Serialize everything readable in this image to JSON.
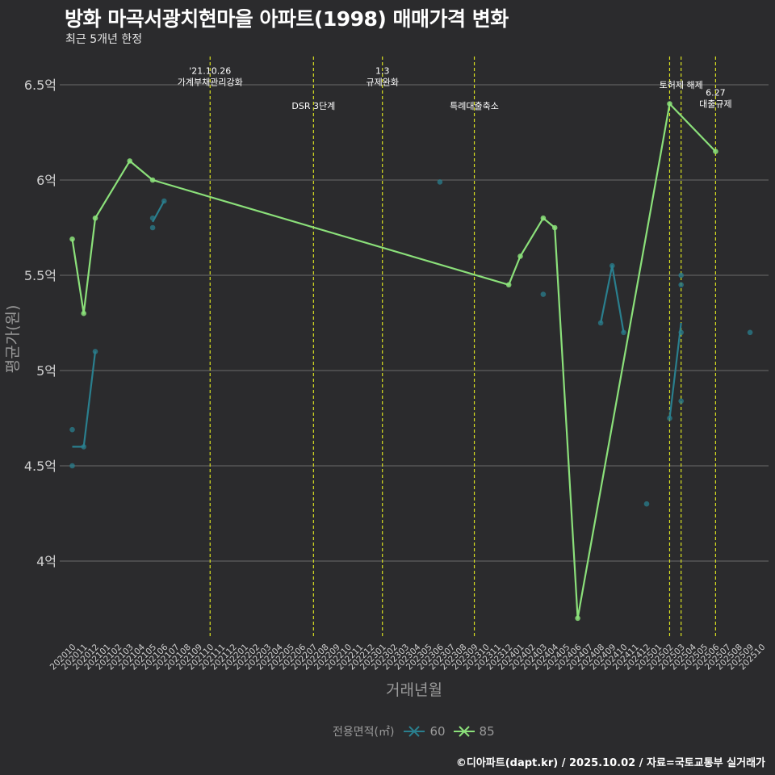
{
  "title": "방화 마곡서광치현마을 아파트(1998) 매매가격 변화",
  "subtitle": "최근 5개년 한정",
  "caption": "©디아파트(dapt.kr) / 2025.10.02 / 자료=국토교통부 실거래가",
  "colors": {
    "background": "#2b2b2d",
    "grid": "#6b6b6b",
    "series_60": "#2a7f8e",
    "series_85": "#8be07a",
    "event_line": "#d9e021",
    "axis_text": "#d0d0d0",
    "axis_title": "#9a9a9a"
  },
  "chart_data": {
    "type": "line",
    "title": "방화 마곡서광치현마을 아파트(1998) 매매가격 변화",
    "xlabel": "거래년월",
    "ylabel": "평균가(원)",
    "ylim": [
      3.6,
      6.65
    ],
    "y_ticks": [
      {
        "value": 4.0,
        "label": "4억"
      },
      {
        "value": 4.5,
        "label": "4.5억"
      },
      {
        "value": 5.0,
        "label": "5억"
      },
      {
        "value": 5.5,
        "label": "5.5억"
      },
      {
        "value": 6.0,
        "label": "6억"
      },
      {
        "value": 6.5,
        "label": "6.5억"
      }
    ],
    "x_ticks": [
      "202010",
      "202011",
      "202012",
      "202101",
      "202102",
      "202103",
      "202104",
      "202105",
      "202106",
      "202107",
      "202108",
      "202109",
      "202110",
      "202111",
      "202112",
      "202201",
      "202202",
      "202203",
      "202204",
      "202205",
      "202206",
      "202207",
      "202208",
      "202209",
      "202210",
      "202211",
      "202212",
      "202301",
      "202302",
      "202303",
      "202304",
      "202305",
      "202306",
      "202307",
      "202308",
      "202309",
      "202310",
      "202311",
      "202312",
      "202401",
      "202402",
      "202403",
      "202404",
      "202405",
      "202406",
      "202407",
      "202408",
      "202409",
      "202410",
      "202411",
      "202412",
      "202501",
      "202502",
      "202503",
      "202504",
      "202505",
      "202506",
      "202507",
      "202508",
      "202509",
      "202510"
    ],
    "legend_title": "전용면적(㎡)",
    "series": [
      {
        "name": "60",
        "line_segments": [
          [
            [
              "202010",
              4.6
            ],
            [
              "202011",
              4.6
            ],
            [
              "202012",
              5.1
            ]
          ],
          [
            [
              "202105",
              5.78
            ],
            [
              "202106",
              5.89
            ]
          ],
          [
            [
              "202408",
              5.25
            ],
            [
              "202409",
              5.55
            ],
            [
              "202410",
              5.2
            ]
          ],
          [
            [
              "202502",
              4.75
            ],
            [
              "202503",
              5.25
            ]
          ]
        ],
        "points": [
          [
            "202010",
            4.69
          ],
          [
            "202010",
            4.5
          ],
          [
            "202011",
            4.6
          ],
          [
            "202012",
            5.1
          ],
          [
            "202105",
            5.8
          ],
          [
            "202105",
            5.75
          ],
          [
            "202106",
            5.89
          ],
          [
            "202306",
            5.99
          ],
          [
            "202403",
            5.4
          ],
          [
            "202408",
            5.25
          ],
          [
            "202409",
            5.55
          ],
          [
            "202410",
            5.2
          ],
          [
            "202412",
            4.3
          ],
          [
            "202502",
            4.75
          ],
          [
            "202503",
            5.5
          ],
          [
            "202503",
            5.45
          ],
          [
            "202503",
            5.2
          ],
          [
            "202503",
            4.84
          ],
          [
            "202509",
            5.2
          ]
        ]
      },
      {
        "name": "85",
        "line_segments": [
          [
            [
              "202010",
              5.69
            ],
            [
              "202011",
              5.3
            ],
            [
              "202012",
              5.8
            ],
            [
              "202103",
              6.1
            ],
            [
              "202105",
              6.0
            ],
            [
              "202312",
              5.45
            ],
            [
              "202401",
              5.6
            ],
            [
              "202403",
              5.8
            ],
            [
              "202404",
              5.75
            ],
            [
              "202406",
              3.7
            ],
            [
              "202502",
              6.4
            ],
            [
              "202506",
              6.15
            ]
          ]
        ],
        "points": [
          [
            "202010",
            5.69
          ],
          [
            "202011",
            5.3
          ],
          [
            "202012",
            5.8
          ],
          [
            "202103",
            6.1
          ],
          [
            "202105",
            6.0
          ],
          [
            "202312",
            5.45
          ],
          [
            "202401",
            5.6
          ],
          [
            "202403",
            5.8
          ],
          [
            "202404",
            5.75
          ],
          [
            "202406",
            3.7
          ],
          [
            "202502",
            6.4
          ],
          [
            "202506",
            6.15
          ]
        ]
      }
    ],
    "events": [
      {
        "x": "202110",
        "lines": [
          "'21.10.26",
          "가계부채관리강화"
        ],
        "label_y": 6.515
      },
      {
        "x": "202207",
        "lines": [
          "DSR 3단계"
        ],
        "label_y": 6.39
      },
      {
        "x": "202301",
        "lines": [
          "1.3",
          "규제완화"
        ],
        "label_y": 6.515
      },
      {
        "x": "202309",
        "lines": [
          "특례대출축소"
        ],
        "label_y": 6.39
      },
      {
        "x": "202502",
        "lines": [],
        "label_y": 6.5
      },
      {
        "x": "202503",
        "lines": [
          "토허제 해제"
        ],
        "label_y": 6.5
      },
      {
        "x": "202506",
        "lines": [
          "6.27",
          "대출규제"
        ],
        "label_y": 6.4
      }
    ]
  }
}
